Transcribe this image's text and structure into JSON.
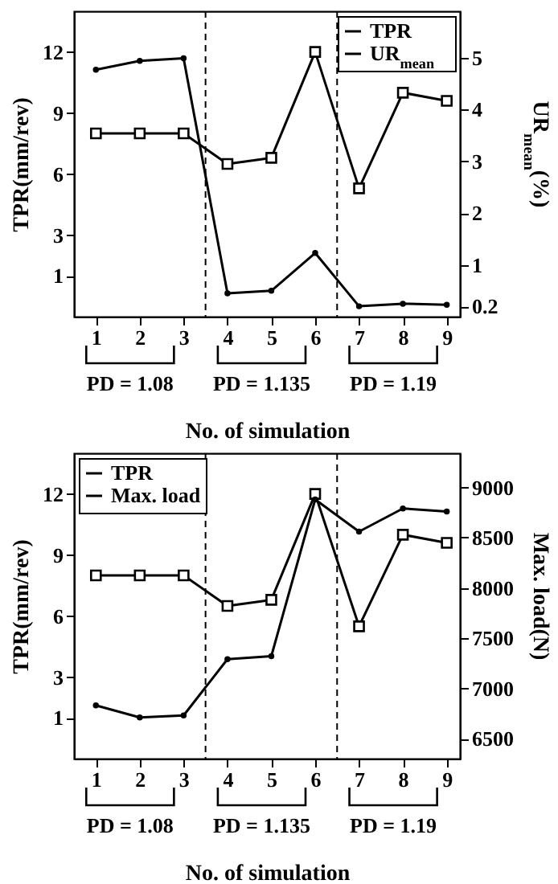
{
  "chart_data": [
    {
      "type": "line",
      "xlabel": "No. of simulation",
      "ylabel": "TPR(mm/rev)",
      "y2label": "UR$_{mean}$(%)",
      "x": [
        1,
        2,
        3,
        4,
        5,
        6,
        7,
        8,
        9
      ],
      "xlim": [
        0.5,
        9.3
      ],
      "xticks": [
        1,
        2,
        3,
        4,
        5,
        6,
        7,
        8,
        9
      ],
      "ylim": [
        -1,
        14
      ],
      "yticks": [
        1,
        3,
        6,
        9,
        12
      ],
      "y2lim": [
        0,
        5.9
      ],
      "y2ticks": [
        0.2,
        1,
        2,
        3,
        4,
        5
      ],
      "legend": "top right",
      "series": [
        {
          "name": "TPR",
          "color": "#000000",
          "marker": "square",
          "values": [
            8,
            8,
            8,
            6.5,
            6.8,
            12,
            5.3,
            10,
            9.6
          ]
        },
        {
          "name": "UR$_{mean}$",
          "color": "#000000",
          "marker": "circle",
          "axis": "y2",
          "values": [
            4.77,
            4.94,
            4.99,
            0.45,
            0.5,
            1.23,
            0.2,
            0.25,
            0.23
          ]
        }
      ],
      "ref_lines": [
        {
          "axis": "x",
          "value": 3.5,
          "color": "#000000",
          "line_style": "dashed"
        },
        {
          "axis": "x",
          "value": 6.5,
          "color": "#000000",
          "line_style": "dashed"
        }
      ],
      "annotations": [
        "PD = 1.08",
        "PD = 1.135",
        "PD = 1.19"
      ]
    },
    {
      "type": "line",
      "xlabel": "No. of simulation",
      "ylabel": "TPR(mm/rev)",
      "y2label": "Max. load(N)",
      "x": [
        1,
        2,
        3,
        4,
        5,
        6,
        7,
        8,
        9
      ],
      "xlim": [
        0.5,
        9.3
      ],
      "xticks": [
        1,
        2,
        3,
        4,
        5,
        6,
        7,
        8,
        9
      ],
      "ylim": [
        -1,
        14
      ],
      "yticks": [
        1,
        3,
        6,
        9,
        12
      ],
      "y2lim": [
        6300,
        9340
      ],
      "y2ticks": [
        6500,
        7000,
        7500,
        8000,
        8500,
        9000
      ],
      "legend": "top left",
      "series": [
        {
          "name": "TPR",
          "color": "#000000",
          "marker": "square",
          "values": [
            8,
            8,
            8,
            6.5,
            6.8,
            12,
            5.5,
            10,
            9.6
          ]
        },
        {
          "name": "Max. load",
          "color": "#000000",
          "marker": "circle",
          "axis": "y2",
          "values": [
            6830,
            6710,
            6730,
            7290,
            7320,
            8880,
            8560,
            8790,
            8760
          ]
        }
      ],
      "ref_lines": [
        {
          "axis": "x",
          "value": 3.5,
          "color": "#000000",
          "line_style": "dashed"
        },
        {
          "axis": "x",
          "value": 6.5,
          "color": "#000000",
          "line_style": "dashed"
        }
      ],
      "annotations": [
        "PD = 1.08",
        "PD = 1.135",
        "PD = 1.19"
      ]
    }
  ]
}
